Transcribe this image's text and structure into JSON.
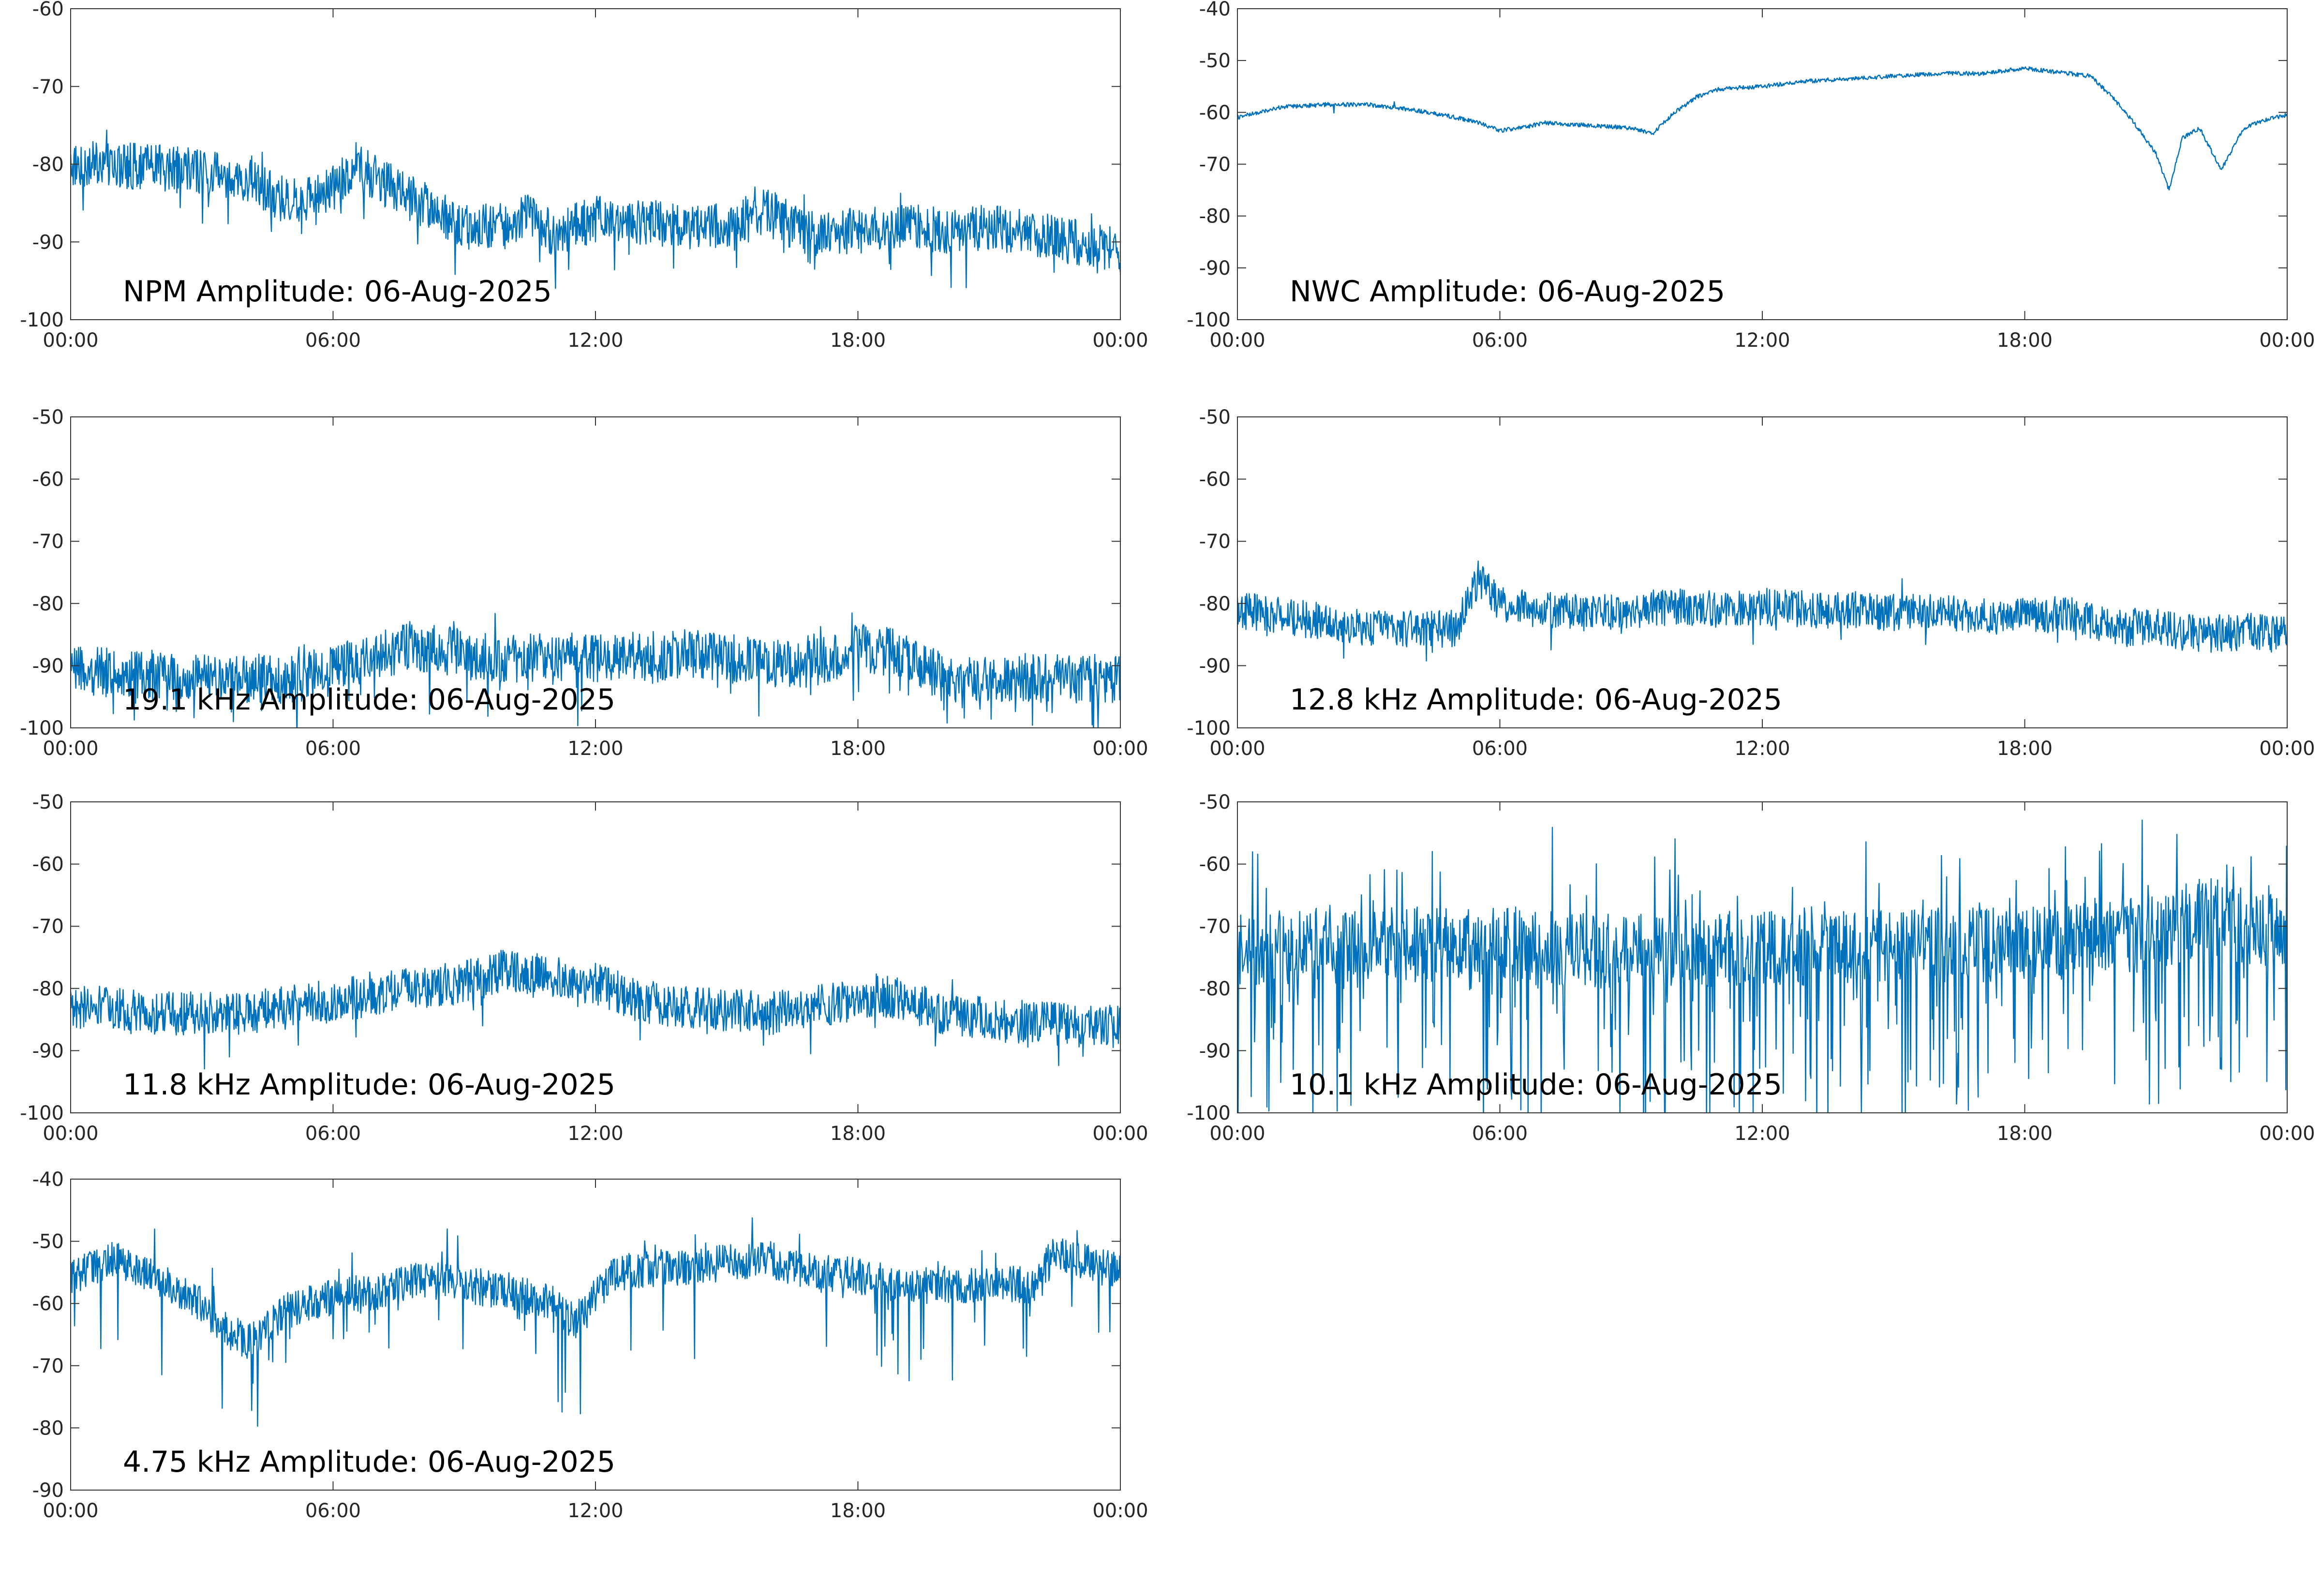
{
  "colors": {
    "trace": "#0072bd",
    "axes": "#333333",
    "background": "#ffffff"
  },
  "chart_data": [
    {
      "type": "line",
      "title": "NPM Amplitude: 06-Aug-2025",
      "x_ticks": [
        "00:00",
        "06:00",
        "12:00",
        "18:00",
        "00:00"
      ],
      "ylim": [
        -100,
        -60
      ],
      "y_ticks": [
        -60,
        -70,
        -80,
        -90,
        -100
      ],
      "grid": false,
      "series": [
        {
          "x_hours": [
            0,
            1,
            2,
            3,
            4,
            5,
            6,
            6.5,
            7,
            8,
            9,
            10,
            10.5,
            11,
            12,
            13,
            14,
            15,
            16,
            16.5,
            17,
            18,
            19,
            20,
            21,
            22,
            23,
            24
          ],
          "y": [
            -80,
            -80,
            -80.5,
            -81,
            -82,
            -85,
            -83,
            -80,
            -82,
            -85,
            -88,
            -88,
            -86,
            -89,
            -87,
            -87.5,
            -88,
            -88,
            -86,
            -88,
            -89,
            -88.5,
            -88,
            -88.5,
            -88,
            -89,
            -90,
            -91
          ]
        }
      ]
    },
    {
      "type": "line",
      "title": "NWC Amplitude: 06-Aug-2025",
      "x_ticks": [
        "00:00",
        "06:00",
        "12:00",
        "18:00",
        "00:00"
      ],
      "ylim": [
        -100,
        -40
      ],
      "y_ticks": [
        -40,
        -50,
        -60,
        -70,
        -80,
        -90,
        -100
      ],
      "grid": false,
      "series": [
        {
          "x_hours": [
            0,
            0.5,
            1,
            2,
            3,
            4,
            5,
            5.5,
            6,
            6.5,
            7,
            8,
            9,
            9.5,
            10,
            10.5,
            11,
            12,
            13,
            14,
            15,
            16,
            17,
            18,
            19,
            19.5,
            20,
            20.5,
            21,
            21.3,
            21.6,
            22,
            22.3,
            22.5,
            23,
            23.5,
            24
          ],
          "y": [
            -61,
            -60,
            -59,
            -58.5,
            -58.5,
            -59.5,
            -61,
            -62,
            -63.5,
            -63,
            -62,
            -62.5,
            -63,
            -64,
            -60,
            -57,
            -55.5,
            -55,
            -54,
            -53.5,
            -53,
            -52.5,
            -52.5,
            -51.5,
            -52.5,
            -53,
            -57,
            -62,
            -68,
            -75,
            -65,
            -63,
            -68,
            -71,
            -63,
            -61.5,
            -60.5
          ]
        }
      ]
    },
    {
      "type": "line",
      "title": "19.1 kHz Amplitude: 06-Aug-2025",
      "x_ticks": [
        "00:00",
        "06:00",
        "12:00",
        "18:00",
        "00:00"
      ],
      "ylim": [
        -100,
        -50
      ],
      "y_ticks": [
        -50,
        -60,
        -70,
        -80,
        -90,
        -100
      ],
      "grid": false,
      "series": [
        {
          "x_hours": [
            0,
            1,
            2,
            3,
            4,
            5,
            6,
            7,
            8,
            9,
            10,
            11,
            12,
            13,
            14,
            15,
            16,
            17,
            18,
            19,
            20,
            21,
            22,
            23,
            24
          ],
          "y": [
            -91,
            -91,
            -91.5,
            -92,
            -92,
            -92,
            -91,
            -88,
            -87,
            -88,
            -89,
            -88.5,
            -89,
            -88.5,
            -88,
            -89,
            -89.5,
            -89.5,
            -87,
            -88,
            -92,
            -92,
            -92,
            -92,
            -92
          ]
        }
      ]
    },
    {
      "type": "line",
      "title": "12.8 kHz Amplitude: 06-Aug-2025",
      "x_ticks": [
        "00:00",
        "06:00",
        "12:00",
        "18:00",
        "00:00"
      ],
      "ylim": [
        -100,
        -50
      ],
      "y_ticks": [
        -50,
        -60,
        -70,
        -80,
        -90,
        -100
      ],
      "grid": false,
      "series": [
        {
          "x_hours": [
            0,
            1,
            2,
            3,
            4,
            5,
            5.5,
            6,
            7,
            8,
            9,
            10,
            11,
            12,
            13,
            14,
            15,
            16,
            17,
            18,
            19,
            20,
            21,
            22,
            23,
            24
          ],
          "y": [
            -81,
            -82,
            -83,
            -84,
            -84,
            -84,
            -76,
            -80,
            -81,
            -81.5,
            -81,
            -80.5,
            -81,
            -80.5,
            -81,
            -81,
            -81.5,
            -81.5,
            -82,
            -82,
            -81.5,
            -84,
            -84,
            -85,
            -84.5,
            -85
          ]
        }
      ]
    },
    {
      "type": "line",
      "title": "11.8 kHz Amplitude: 06-Aug-2025",
      "x_ticks": [
        "00:00",
        "06:00",
        "12:00",
        "18:00",
        "00:00"
      ],
      "ylim": [
        -100,
        -50
      ],
      "y_ticks": [
        -50,
        -60,
        -70,
        -80,
        -90,
        -100
      ],
      "grid": false,
      "series": [
        {
          "x_hours": [
            0,
            1,
            2,
            3,
            4,
            5,
            6,
            7,
            8,
            9,
            10,
            11,
            11.5,
            12,
            13,
            14,
            15,
            16,
            17,
            18,
            18.5,
            19,
            20,
            21,
            22,
            23,
            24
          ],
          "y": [
            -83,
            -83,
            -84,
            -84,
            -84,
            -83,
            -82,
            -81,
            -80,
            -79,
            -77,
            -78,
            -80,
            -79,
            -82,
            -83,
            -83.5,
            -84,
            -83,
            -82,
            -81,
            -82,
            -84,
            -85,
            -85.5,
            -86,
            -86
          ]
        }
      ]
    },
    {
      "type": "line",
      "title": "10.1 kHz Amplitude: 06-Aug-2025",
      "x_ticks": [
        "00:00",
        "06:00",
        "12:00",
        "18:00",
        "00:00"
      ],
      "ylim": [
        -100,
        -50
      ],
      "y_ticks": [
        -50,
        -60,
        -70,
        -80,
        -90,
        -100
      ],
      "grid": false,
      "series": [
        {
          "x_hours": [
            0,
            2,
            4,
            6,
            8,
            10,
            12,
            14,
            16,
            18,
            20,
            21,
            22,
            23,
            24
          ],
          "y": [
            -74,
            -73,
            -73,
            -73,
            -74,
            -74,
            -73.5,
            -73.5,
            -73,
            -73,
            -72,
            -71,
            -69,
            -70,
            -71
          ]
        }
      ]
    },
    {
      "type": "line",
      "title": "4.75 kHz Amplitude: 06-Aug-2025",
      "x_ticks": [
        "00:00",
        "06:00",
        "12:00",
        "18:00",
        "00:00"
      ],
      "ylim": [
        -90,
        -40
      ],
      "y_ticks": [
        -40,
        -50,
        -60,
        -70,
        -80,
        -90
      ],
      "grid": false,
      "series": [
        {
          "x_hours": [
            0,
            0.5,
            1,
            2,
            3,
            3.5,
            4,
            4.5,
            5,
            6,
            7,
            8,
            9,
            10,
            11,
            11.5,
            12,
            12.5,
            13,
            14,
            15,
            16,
            17,
            18,
            19,
            20,
            21,
            22,
            22.5,
            23,
            24
          ],
          "y": [
            -56,
            -54,
            -53,
            -56,
            -60,
            -64,
            -66,
            -64,
            -61,
            -59,
            -58,
            -56,
            -57,
            -58,
            -60,
            -63,
            -59,
            -55,
            -54.5,
            -54,
            -53.5,
            -53,
            -55,
            -55.5,
            -57,
            -57,
            -57,
            -57,
            -52,
            -53,
            -55
          ]
        }
      ]
    }
  ]
}
